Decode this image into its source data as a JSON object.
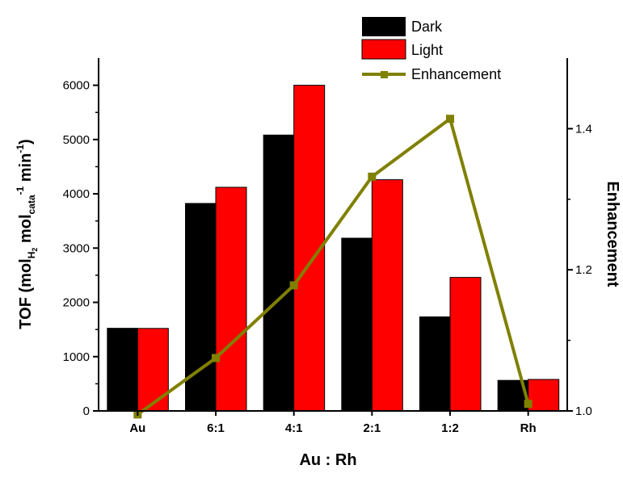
{
  "chart_data": {
    "type": "bar",
    "categories": [
      "Au",
      "6:1",
      "4:1",
      "2:1",
      "1:2",
      "Rh"
    ],
    "series": [
      {
        "name": "Dark",
        "type": "bar",
        "axis": "left",
        "color": "#000000",
        "values": [
          1530,
          3830,
          5090,
          3190,
          1740,
          570
        ]
      },
      {
        "name": "Light",
        "type": "bar",
        "axis": "left",
        "color": "#ff0000",
        "values": [
          1520,
          4120,
          6000,
          4260,
          2460,
          580
        ]
      },
      {
        "name": "Enhancement",
        "type": "line",
        "axis": "right",
        "color": "#808000",
        "marker": "square",
        "values": [
          0.995,
          1.075,
          1.178,
          1.332,
          1.414,
          1.01
        ]
      }
    ],
    "xlabel": "Au : Rh",
    "ylabel": {
      "main": "TOF (mol",
      "sub1": "H",
      "sub2": "2",
      "mid": " mol",
      "sub3": "cata",
      "sup": "-1",
      "tail": " min",
      "sup2": "-1",
      "close": ")"
    },
    "y2label": "Enhancement",
    "ylim": [
      0,
      6500
    ],
    "yticks": [
      "0",
      "1000",
      "2000",
      "3000",
      "4000",
      "5000",
      "6000"
    ],
    "y2lim": [
      1.0,
      1.5
    ],
    "y2ticks": [
      "1.0",
      "1.2",
      "1.4"
    ],
    "legend_position": "top-right"
  }
}
